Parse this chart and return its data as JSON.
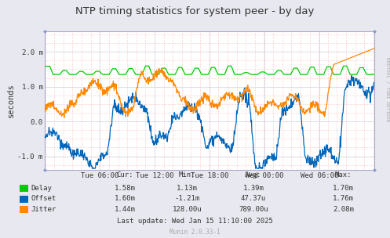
{
  "title": "NTP timing statistics for system peer - by day",
  "ylabel": "seconds",
  "background_color": "#e8e8f0",
  "plot_bg_color": "#ffffff",
  "ylim": [
    -0.0014,
    0.0026
  ],
  "yticks": [
    -0.001,
    0.0,
    0.001,
    0.002
  ],
  "ytick_labels": [
    "-1.0 m",
    "0.0",
    "1.0 m",
    "2.0 m"
  ],
  "xtick_labels": [
    "Tue 06:00",
    "Tue 12:00",
    "Tue 18:00",
    "Wed 00:00",
    "Wed 06:00"
  ],
  "xtick_positions": [
    0.167,
    0.333,
    0.5,
    0.667,
    0.833
  ],
  "delay_color": "#00cc00",
  "offset_color": "#0066bb",
  "jitter_color": "#ff8800",
  "rrdtool_label": "RRDTOOL / TOBI OETIKER",
  "munin_label": "Munin 2.0.33-1",
  "legend_entries": [
    "Delay",
    "Offset",
    "Jitter"
  ],
  "stats_headers": [
    "Cur:",
    "Min:",
    "Avg:",
    "Max:"
  ],
  "delay_stats": [
    "1.58m",
    "1.13m",
    "1.39m",
    "1.70m"
  ],
  "offset_stats": [
    "1.60m",
    "-1.21m",
    "47.37u",
    "1.76m"
  ],
  "jitter_stats": [
    "1.44m",
    "128.00u",
    "789.00u",
    "2.08m"
  ],
  "last_update": "Last update: Wed Jan 15 11:10:00 2025"
}
